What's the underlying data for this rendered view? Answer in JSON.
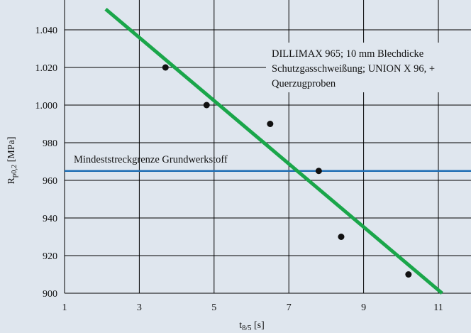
{
  "chart_data": {
    "type": "scatter",
    "xlabel": "t8/5 [s]",
    "xlabel_main": "t",
    "xlabel_sub": "8/5",
    "xlabel_unit": " [s]",
    "ylabel": "Rp0,2 [MPa]",
    "ylabel_main": "R",
    "ylabel_sub": "p0,2",
    "ylabel_unit": " [MPa]",
    "xlim": [
      1,
      12
    ],
    "ylim": [
      900,
      1050
    ],
    "x_ticks": [
      1,
      3,
      5,
      7,
      9,
      11
    ],
    "x_tick_labels": [
      "1",
      "3",
      "5",
      "7",
      "9",
      "11"
    ],
    "y_ticks": [
      900,
      920,
      940,
      960,
      980,
      1000,
      1020,
      1040
    ],
    "y_tick_labels": [
      "900",
      "920",
      "940",
      "960",
      "980",
      "1.000",
      "1.020",
      "1.040"
    ],
    "grid": true,
    "points": [
      {
        "x": 3.7,
        "y": 1020
      },
      {
        "x": 4.8,
        "y": 1000
      },
      {
        "x": 6.5,
        "y": 990
      },
      {
        "x": 7.8,
        "y": 965
      },
      {
        "x": 8.4,
        "y": 930
      },
      {
        "x": 10.2,
        "y": 910
      }
    ],
    "trend_line": {
      "x": [
        2.1,
        11.1
      ],
      "y": [
        1051,
        900
      ],
      "color": "#1aa64a"
    },
    "reference_line": {
      "y": 965,
      "color": "#1f6eb4",
      "label": "Mindeststreckgrenze Grundwerkstoff"
    },
    "annotation": {
      "lines": [
        "DILLIMAX 965; 10 mm Blechdicke",
        "Schutzgasschweißung; UNION X 96, +",
        "Querzugproben"
      ]
    },
    "colors": {
      "background": "#dfe6ee",
      "grid": "#000000",
      "points": "#111111"
    }
  }
}
